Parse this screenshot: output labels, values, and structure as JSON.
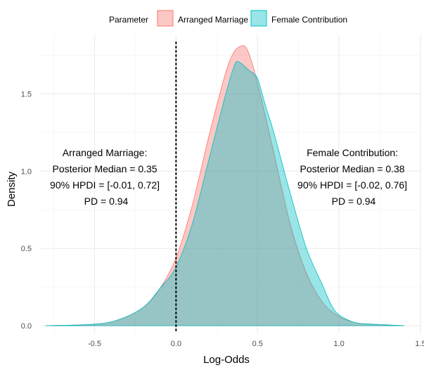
{
  "chart_data": {
    "type": "area",
    "title": "",
    "xlabel": "Log-Odds",
    "ylabel": "Density",
    "xlim": [
      -0.83,
      1.5
    ],
    "ylim": [
      -0.05,
      1.88
    ],
    "x_ticks": [
      -0.5,
      0.0,
      0.5,
      1.0,
      1.5
    ],
    "x_tick_labels": [
      "-0.5",
      "0.0",
      "0.5",
      "1.0",
      "1.5"
    ],
    "y_ticks": [
      0.0,
      0.5,
      1.0,
      1.5
    ],
    "y_tick_labels": [
      "0.0",
      "0.5",
      "1.0",
      "1.5"
    ],
    "grid": true,
    "legend": {
      "title": "Parameter",
      "position": "top"
    },
    "reference_line": {
      "x": 0.0,
      "style": "dotted"
    },
    "series": [
      {
        "name": "Arranged Marriage",
        "color": "#F8766D",
        "points": [
          [
            -0.8,
            0.0
          ],
          [
            -0.5,
            0.01
          ],
          [
            -0.35,
            0.04
          ],
          [
            -0.2,
            0.12
          ],
          [
            -0.1,
            0.24
          ],
          [
            0.0,
            0.44
          ],
          [
            0.1,
            0.78
          ],
          [
            0.2,
            1.22
          ],
          [
            0.3,
            1.62
          ],
          [
            0.35,
            1.76
          ],
          [
            0.4,
            1.81
          ],
          [
            0.44,
            1.78
          ],
          [
            0.5,
            1.57
          ],
          [
            0.6,
            1.12
          ],
          [
            0.7,
            0.66
          ],
          [
            0.8,
            0.34
          ],
          [
            0.9,
            0.15
          ],
          [
            1.0,
            0.06
          ],
          [
            1.1,
            0.02
          ],
          [
            1.2,
            0.01
          ],
          [
            1.4,
            0.0
          ]
        ]
      },
      {
        "name": "Female Contribution",
        "color": "#00BFC4",
        "points": [
          [
            -0.8,
            0.0
          ],
          [
            -0.5,
            0.01
          ],
          [
            -0.35,
            0.04
          ],
          [
            -0.2,
            0.12
          ],
          [
            -0.1,
            0.24
          ],
          [
            0.0,
            0.38
          ],
          [
            0.1,
            0.66
          ],
          [
            0.2,
            1.07
          ],
          [
            0.3,
            1.48
          ],
          [
            0.35,
            1.66
          ],
          [
            0.38,
            1.71
          ],
          [
            0.45,
            1.65
          ],
          [
            0.5,
            1.6
          ],
          [
            0.55,
            1.42
          ],
          [
            0.6,
            1.25
          ],
          [
            0.7,
            0.86
          ],
          [
            0.8,
            0.5
          ],
          [
            0.9,
            0.26
          ],
          [
            0.95,
            0.14
          ],
          [
            1.0,
            0.07
          ],
          [
            1.1,
            0.02
          ],
          [
            1.2,
            0.01
          ],
          [
            1.4,
            0.0
          ]
        ]
      }
    ],
    "annotations": [
      {
        "series": "Arranged Marriage",
        "lines": [
          "Arranged Marriage:",
          "Posterior Median = 0.35",
          "90% HPDI = [-0.01, 0.72]",
          "PD = 0.94"
        ]
      },
      {
        "series": "Female Contribution",
        "lines": [
          "Female Contribution:",
          "Posterior Median = 0.38",
          "90% HPDI = [-0.02, 0.76]",
          "PD = 0.94"
        ]
      }
    ]
  }
}
